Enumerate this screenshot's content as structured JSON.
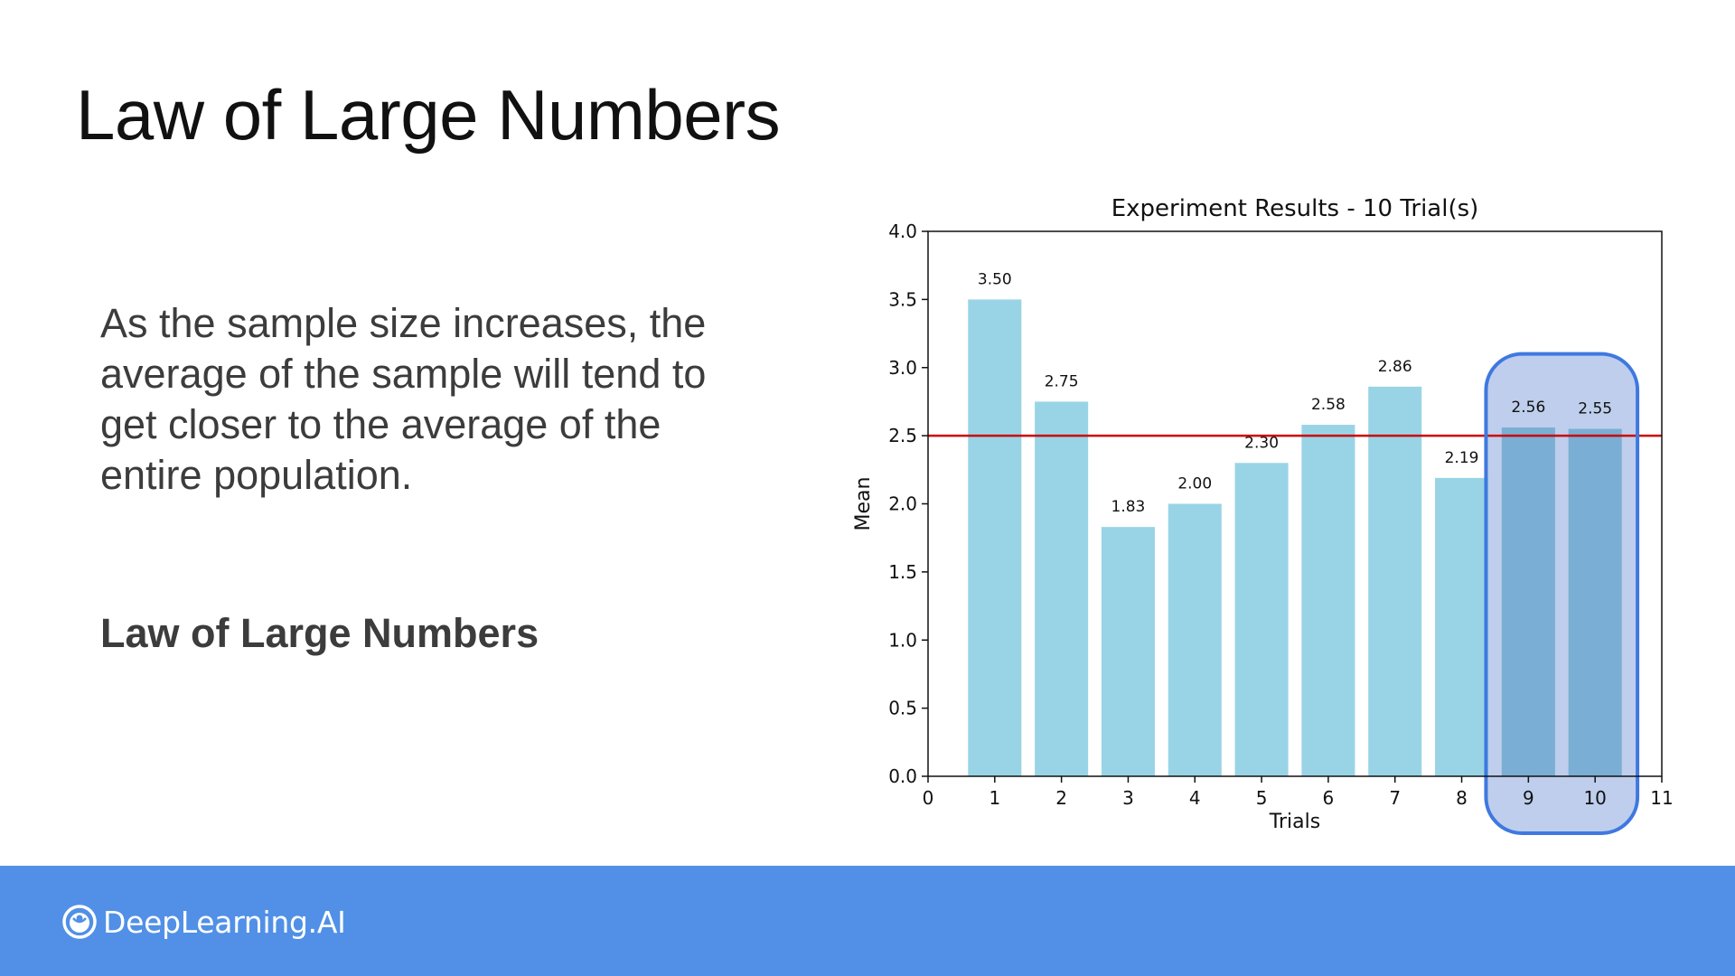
{
  "slide": {
    "title": "Law of Large Numbers",
    "body": "As the sample size increases, the average of the sample will tend to get closer to the average of the entire population.",
    "subheading": "Law of Large Numbers"
  },
  "footer": {
    "brand": "DeepLearning.AI",
    "background": "#5190e6"
  },
  "chart_data": {
    "type": "bar",
    "title": "Experiment Results - 10 Trial(s)",
    "xlabel": "Trials",
    "ylabel": "Mean",
    "categories": [
      1,
      2,
      3,
      4,
      5,
      6,
      7,
      8,
      9,
      10
    ],
    "values": [
      3.5,
      2.75,
      1.83,
      2.0,
      2.3,
      2.58,
      2.86,
      2.19,
      2.56,
      2.55
    ],
    "value_labels": [
      "3.50",
      "2.75",
      "1.83",
      "2.00",
      "2.30",
      "2.58",
      "2.86",
      "2.19",
      "2.56",
      "2.55"
    ],
    "xlim": [
      0,
      11
    ],
    "ylim": [
      0,
      4.0
    ],
    "xticks": [
      "0",
      "1",
      "2",
      "3",
      "4",
      "5",
      "6",
      "7",
      "8",
      "9",
      "10",
      "11"
    ],
    "yticks": [
      "0.0",
      "0.5",
      "1.0",
      "1.5",
      "2.0",
      "2.5",
      "3.0",
      "3.5",
      "4.0"
    ],
    "reference_line": {
      "y": 2.5,
      "color": "#cc0000"
    },
    "highlight": {
      "from": 9,
      "to": 10,
      "fill": "#b7c9ea",
      "stroke": "#3f78e0"
    },
    "bar_color": "#99d4e6",
    "highlighted_bar_color": "#7aaed4",
    "grid": false
  }
}
